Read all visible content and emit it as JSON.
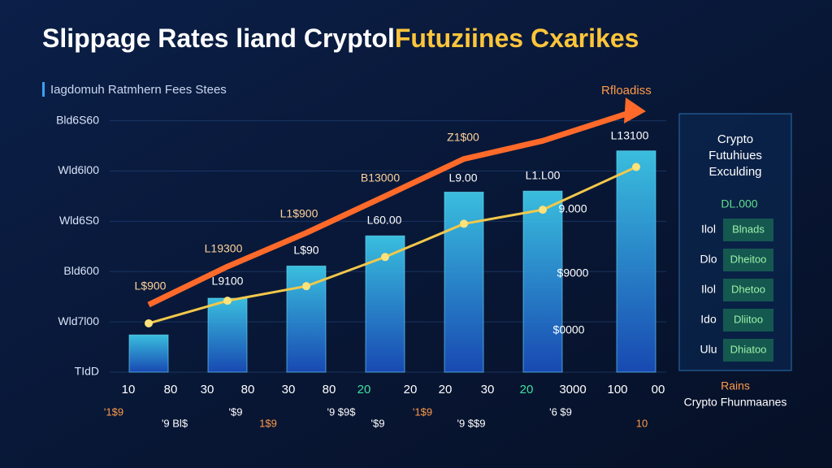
{
  "chart_data": {
    "type": "bar",
    "title": "Slippage Rates liand Cryptol",
    "title_highlight": "Futuziines Cxarikes",
    "subtitle": "Iagdomuh Ratmhern Fees Stees",
    "trend_label": "Rfloadiss",
    "categories": [
      null,
      null,
      null,
      null,
      null,
      null,
      null
    ],
    "values": [
      0.74,
      1.47,
      2.11,
      2.71,
      3.58,
      3.6,
      4.4
    ],
    "color": "#2f7fe0",
    "lines": [
      {
        "color": "#ff6a2a",
        "values": [
          1.34,
          2.1,
          2.77,
          3.5,
          4.24,
          4.6,
          5.2
        ]
      },
      {
        "color": "#f2c84a",
        "values": [
          0.97,
          1.42,
          1.71,
          2.29,
          2.95,
          3.23,
          4.08
        ]
      }
    ],
    "ylim": [
      0,
      5.3
    ],
    "yticks": [
      {
        "value": 0,
        "label": "TIdD"
      },
      {
        "value": 1,
        "label": "Wld7l00"
      },
      {
        "value": 2,
        "label": "Bld600"
      },
      {
        "value": 3,
        "label": "Wld6S0"
      },
      {
        "value": 4,
        "label": "Wld6l00"
      },
      {
        "value": 5,
        "label": "Bld6S60"
      }
    ],
    "annotations": [
      {
        "text": "L$900",
        "color": "#ffd39a"
      },
      {
        "text": "L19300",
        "color": "#ffd39a"
      },
      {
        "text": "L1$900",
        "color": "#ffd39a"
      },
      {
        "text": "B13000",
        "color": "#ffd39a"
      },
      {
        "text": "Z1$00",
        "color": "#ffd39a"
      },
      {
        "text": "L13100",
        "color": "#ffffff"
      },
      {
        "text": "L9100",
        "color": "#ffffff"
      },
      {
        "text": "L$90",
        "color": "#ffffff"
      },
      {
        "text": "L60.00",
        "color": "#ffffff"
      },
      {
        "text": "L9.00",
        "color": "#ffffff"
      },
      {
        "text": "L1.L00",
        "color": "#ffffff"
      },
      {
        "text": "9.000",
        "color": "#ffffff"
      },
      {
        "text": "$9000",
        "color": "#ffffff"
      },
      {
        "text": "$0000",
        "color": "#ffffff"
      }
    ],
    "x_labels": [
      "10",
      "80",
      "30",
      "80",
      "30",
      "80",
      "20",
      "20",
      "20",
      "30",
      "20",
      "3000",
      "100",
      "00"
    ],
    "x_labels_2": [
      "'1$9",
      "'9 Bl$",
      "'$9",
      "1$9",
      "'9 $9$",
      "'$9",
      "'1$9",
      "'9 $$9",
      "'6 $9",
      "10"
    ]
  },
  "panel": {
    "title": [
      "Crypto",
      "Futuhiues",
      "Exculding"
    ],
    "header": "DL.000",
    "rows": [
      [
        "Ilol",
        "Blnads"
      ],
      [
        "Dlo",
        "Dheitoo"
      ],
      [
        "Ilol",
        "Dhetoo"
      ],
      [
        "Ido",
        "Dliitoo"
      ],
      [
        "Ulu",
        "Dhiatoo"
      ]
    ],
    "footer": [
      "Rains",
      "Crypto Fhunmaanes"
    ]
  }
}
